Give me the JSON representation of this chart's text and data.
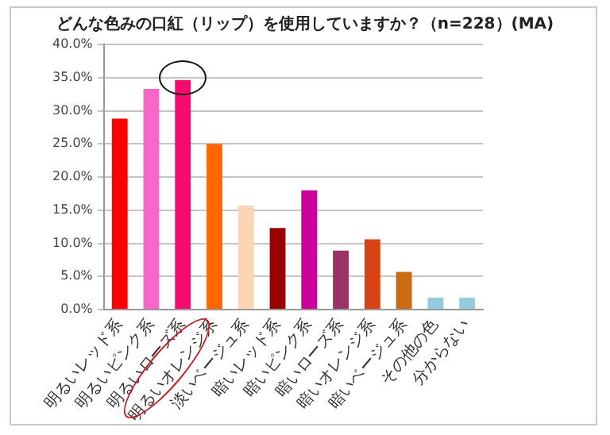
{
  "chart_data": {
    "type": "bar",
    "title": "どんな色みの口紅（リップ）を使用していますか？（n=228）(MA)",
    "categories": [
      "明るいレッド系",
      "明るいピンク系",
      "明るいローズ系",
      "明るいオレンジ系",
      "淡いベージュ系",
      "暗いレッド系",
      "暗いピンク系",
      "暗いローズ系",
      "暗いオレンジ系",
      "暗いベージュ系",
      "その他の色",
      "分からない"
    ],
    "values": [
      28.8,
      33.3,
      34.6,
      25.0,
      15.7,
      12.3,
      18.0,
      8.9,
      10.6,
      5.7,
      1.8,
      1.8
    ],
    "colors": [
      "#ff0000",
      "#f766c9",
      "#f50a6e",
      "#ff6600",
      "#fcd5b5",
      "#990000",
      "#cc0099",
      "#993366",
      "#d84315",
      "#cc6a14",
      "#93cddd",
      "#93cddd"
    ],
    "ylim": [
      0,
      40
    ],
    "yticks": [
      {
        "value": 0,
        "label": "0.0%"
      },
      {
        "value": 5,
        "label": "5.0%"
      },
      {
        "value": 10,
        "label": "10.0%"
      },
      {
        "value": 15,
        "label": "15.0%"
      },
      {
        "value": 20,
        "label": "20.0%"
      },
      {
        "value": 25,
        "label": "25.0%"
      },
      {
        "value": 30,
        "label": "30.0%"
      },
      {
        "value": 35,
        "label": "35.0%"
      },
      {
        "value": 40,
        "label": "40.0%"
      }
    ],
    "grid": "y",
    "legend": false
  }
}
